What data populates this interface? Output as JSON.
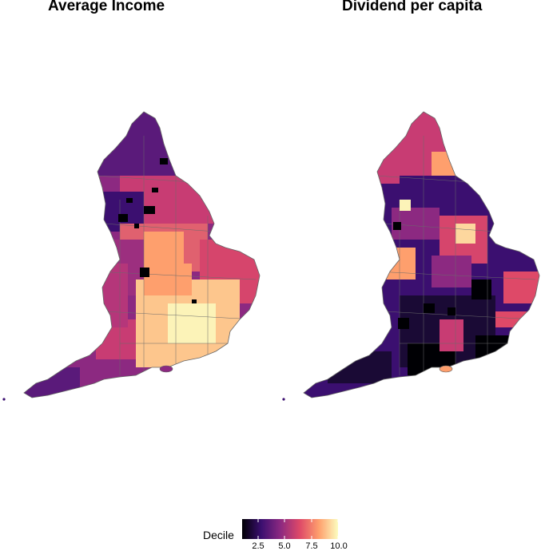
{
  "panels": [
    {
      "title": "Average Income",
      "dark_patches": 8
    },
    {
      "title": "Dividend per capita",
      "dark_patches": 14
    }
  ],
  "legend": {
    "title": "Decile",
    "ticks": [
      "2.5",
      "5.0",
      "7.5",
      "10.0"
    ],
    "tick_values": [
      2.5,
      5.0,
      7.5,
      10.0
    ],
    "range": [
      1,
      10
    ],
    "colormap": "magma",
    "colors": [
      "#000004",
      "#3b0f70",
      "#8c2981",
      "#de4968",
      "#fe9f6d",
      "#fcfdbf"
    ]
  }
}
